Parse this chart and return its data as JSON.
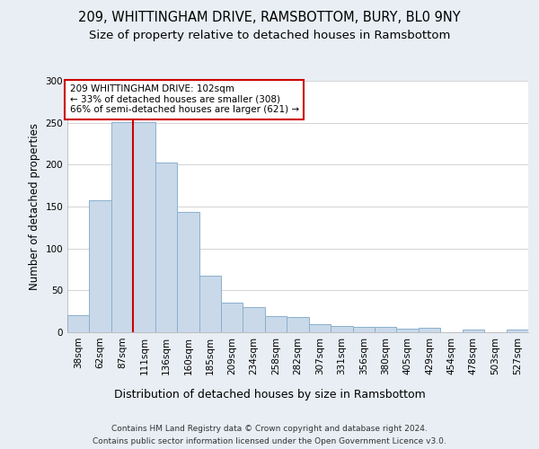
{
  "title": "209, WHITTINGHAM DRIVE, RAMSBOTTOM, BURY, BL0 9NY",
  "subtitle": "Size of property relative to detached houses in Ramsbottom",
  "xlabel": "Distribution of detached houses by size in Ramsbottom",
  "ylabel": "Number of detached properties",
  "footer_line1": "Contains HM Land Registry data © Crown copyright and database right 2024.",
  "footer_line2": "Contains public sector information licensed under the Open Government Licence v3.0.",
  "annotation_line1": "209 WHITTINGHAM DRIVE: 102sqm",
  "annotation_line2": "← 33% of detached houses are smaller (308)",
  "annotation_line3": "66% of semi-detached houses are larger (621) →",
  "bar_color": "#c9d9ea",
  "bar_edge_color": "#8ab0cc",
  "vline_color": "#cc0000",
  "categories": [
    "38sqm",
    "62sqm",
    "87sqm",
    "111sqm",
    "136sqm",
    "160sqm",
    "185sqm",
    "209sqm",
    "234sqm",
    "258sqm",
    "282sqm",
    "307sqm",
    "331sqm",
    "356sqm",
    "380sqm",
    "405sqm",
    "429sqm",
    "454sqm",
    "478sqm",
    "503sqm",
    "527sqm"
  ],
  "values": [
    20,
    158,
    251,
    251,
    203,
    144,
    67,
    35,
    30,
    19,
    18,
    10,
    7,
    6,
    6,
    4,
    5,
    0,
    3,
    0,
    3
  ],
  "ylim": [
    0,
    300
  ],
  "yticks": [
    0,
    50,
    100,
    150,
    200,
    250,
    300
  ],
  "background_color": "#e8eef4",
  "plot_background": "#ffffff",
  "vline_x_index": 2.5,
  "title_fontsize": 10.5,
  "subtitle_fontsize": 9.5,
  "ylabel_fontsize": 8.5,
  "xlabel_fontsize": 9,
  "tick_fontsize": 7.5,
  "footer_fontsize": 6.5
}
